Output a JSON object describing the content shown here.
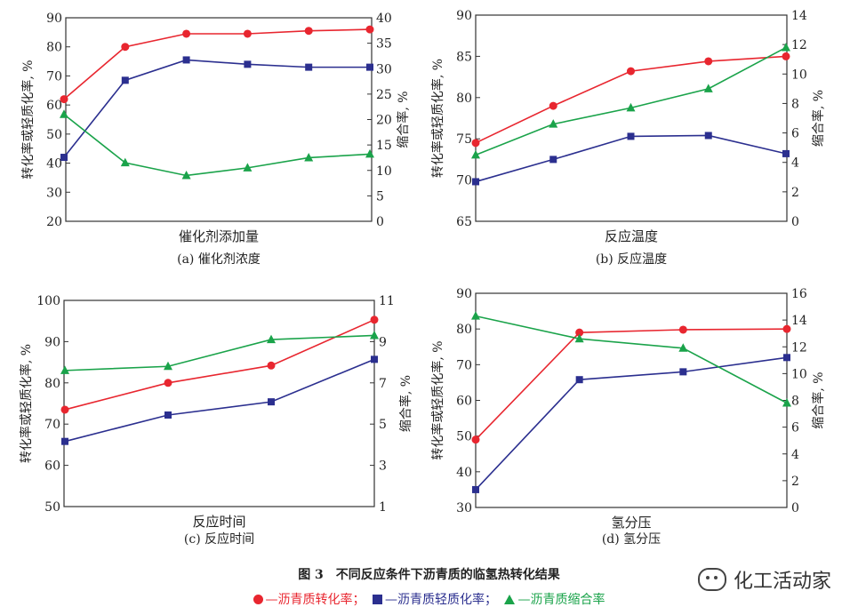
{
  "figure_caption": "图 3　不同反应条件下沥青质的临氢热转化结果",
  "legend": {
    "conversion": "—沥青质转化率；",
    "light_conversion": "—沥青质轻质化率；",
    "coking": "—沥青质缩合率"
  },
  "brand": "化工活动家",
  "colors": {
    "conversion": "#e8262f",
    "light_conversion": "#2b2f8f",
    "coking": "#1aa34a"
  },
  "chart_data": [
    {
      "type": "line",
      "panel": "a",
      "caption": "(a) 催化剂浓度",
      "xlabel": "催化剂添加量",
      "ylabel": "转化率或轻质化率, %",
      "y2label": "缩合率, %",
      "ylim": [
        20,
        90
      ],
      "yticks": [
        "20",
        "30",
        "40",
        "50",
        "60",
        "70",
        "80",
        "90"
      ],
      "y2lim": [
        0,
        40
      ],
      "y2ticks": [
        "0",
        "5",
        "10",
        "15",
        "20",
        "25",
        "30",
        "35",
        "40"
      ],
      "x": [
        0,
        1,
        2,
        3,
        4,
        5
      ],
      "series": [
        {
          "key": "conversion",
          "axis": "left",
          "marker": "circle",
          "values": [
            62,
            80,
            84.5,
            84.5,
            85.5,
            86
          ]
        },
        {
          "key": "light_conversion",
          "axis": "left",
          "marker": "square",
          "values": [
            42,
            68.5,
            75.5,
            74,
            73,
            73
          ]
        },
        {
          "key": "coking",
          "axis": "right",
          "marker": "triangle",
          "values": [
            21,
            11.5,
            9,
            10.5,
            12.5,
            13.2
          ]
        }
      ]
    },
    {
      "type": "line",
      "panel": "b",
      "caption": "(b) 反应温度",
      "xlabel": "反应温度",
      "ylabel": "转化率或轻质化率, %",
      "y2label": "缩合率, %",
      "ylim": [
        65,
        90
      ],
      "yticks": [
        "65",
        "70",
        "75",
        "80",
        "85",
        "90"
      ],
      "y2lim": [
        0,
        14
      ],
      "y2ticks": [
        "0",
        "2",
        "4",
        "6",
        "8",
        "10",
        "12",
        "14"
      ],
      "x": [
        0,
        1,
        2,
        3,
        4
      ],
      "series": [
        {
          "key": "conversion",
          "axis": "left",
          "marker": "circle",
          "values": [
            74.5,
            79,
            83.2,
            84.4,
            85
          ]
        },
        {
          "key": "light_conversion",
          "axis": "left",
          "marker": "square",
          "values": [
            69.8,
            72.5,
            75.3,
            75.4,
            73.2
          ]
        },
        {
          "key": "coking",
          "axis": "right",
          "marker": "triangle",
          "values": [
            4.5,
            6.6,
            7.7,
            9,
            11.8
          ]
        }
      ]
    },
    {
      "type": "line",
      "panel": "c",
      "caption": "(c) 反应时间",
      "xlabel": "反应时间",
      "ylabel": "转化率或轻质化率, %",
      "y2label": "缩合率, %",
      "ylim": [
        50,
        100
      ],
      "yticks": [
        "50",
        "60",
        "70",
        "80",
        "90",
        "100"
      ],
      "y2lim": [
        1,
        11
      ],
      "y2ticks": [
        "1",
        "3",
        "5",
        "7",
        "9",
        "11"
      ],
      "x": [
        0,
        1,
        2,
        3
      ],
      "series": [
        {
          "key": "conversion",
          "axis": "left",
          "marker": "circle",
          "values": [
            73.5,
            80,
            84.2,
            95.3
          ]
        },
        {
          "key": "light_conversion",
          "axis": "left",
          "marker": "square",
          "values": [
            65.8,
            72.2,
            75.4,
            85.7
          ]
        },
        {
          "key": "coking",
          "axis": "right",
          "marker": "triangle",
          "values": [
            7.6,
            7.8,
            9.1,
            9.3
          ]
        }
      ]
    },
    {
      "type": "line",
      "panel": "d",
      "caption": "(d) 氢分压",
      "xlabel": "氢分压",
      "ylabel": "转化率或轻质化率, %",
      "y2label": "缩合率, %",
      "ylim": [
        30,
        90
      ],
      "yticks": [
        "30",
        "40",
        "50",
        "60",
        "70",
        "80",
        "90"
      ],
      "y2lim": [
        0,
        16
      ],
      "y2ticks": [
        "0",
        "2",
        "4",
        "6",
        "8",
        "10",
        "12",
        "14",
        "16"
      ],
      "x": [
        0,
        1,
        2,
        3
      ],
      "series": [
        {
          "key": "conversion",
          "axis": "left",
          "marker": "circle",
          "values": [
            49,
            79,
            79.8,
            80
          ]
        },
        {
          "key": "light_conversion",
          "axis": "left",
          "marker": "square",
          "values": [
            35,
            65.8,
            68,
            72
          ]
        },
        {
          "key": "coking",
          "axis": "right",
          "marker": "triangle",
          "values": [
            14.3,
            12.6,
            11.9,
            7.8
          ]
        }
      ]
    }
  ]
}
